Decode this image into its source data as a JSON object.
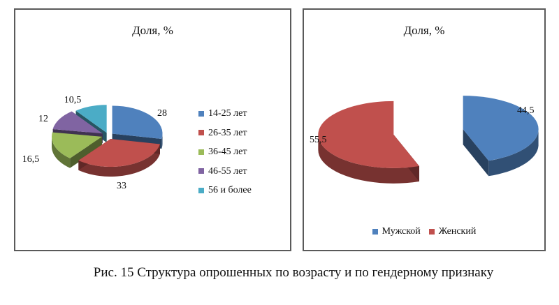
{
  "chart_data": [
    {
      "type": "pie",
      "title": "Доля, %",
      "categories": [
        "14-25 лет",
        "26-35 лет",
        "36-45 лет",
        "46-55 лет",
        "56 и более"
      ],
      "values": [
        28,
        33,
        16.5,
        12,
        10.5
      ],
      "value_labels": [
        "28",
        "33",
        "16,5",
        "12",
        "10,5"
      ],
      "colors": [
        "#4f81bd",
        "#c0504d",
        "#9bbb59",
        "#8064a2",
        "#4bacc6"
      ],
      "exploded": true,
      "legend": "right"
    },
    {
      "type": "pie",
      "title": "Доля, %",
      "categories": [
        "Мужской",
        "Женский"
      ],
      "values": [
        44.5,
        55.5
      ],
      "value_labels": [
        "44,5",
        "55,5"
      ],
      "colors": [
        "#4f81bd",
        "#c0504d"
      ],
      "exploded": true,
      "legend": "bottom"
    }
  ],
  "caption": "Рис. 15 Структура опрошенных по возрасту и по гендерному признаку"
}
